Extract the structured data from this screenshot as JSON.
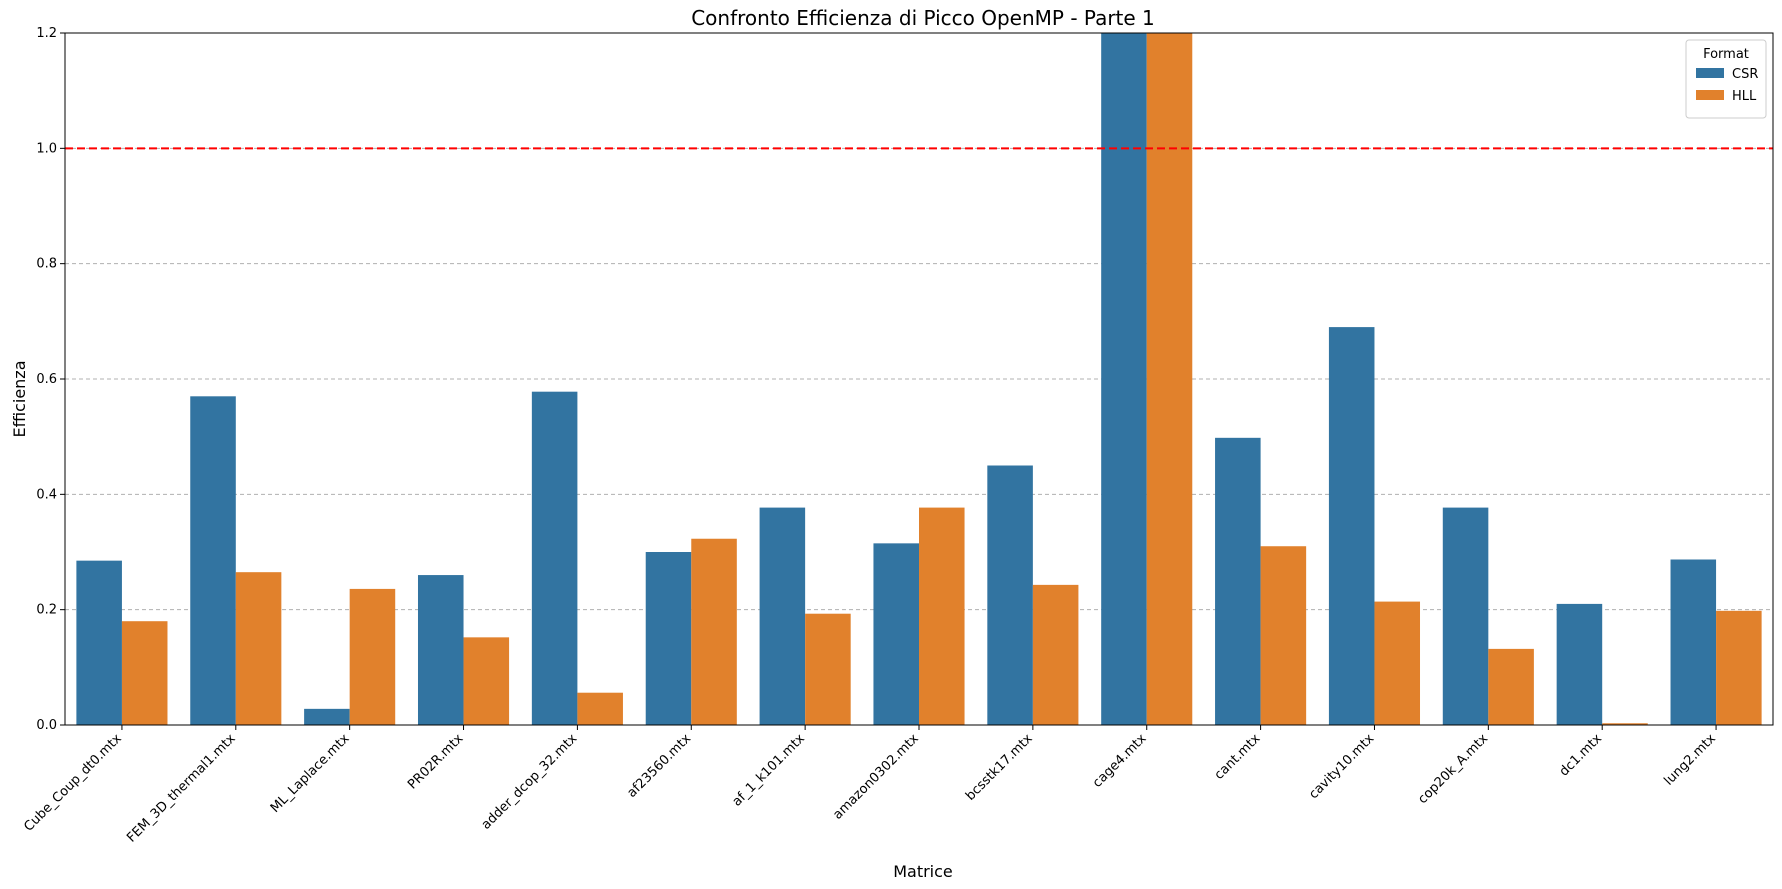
{
  "chart_data": {
    "type": "bar",
    "title": "Confronto Efficienza di Picco OpenMP - Parte 1",
    "xlabel": "Matrice",
    "ylabel": "Efficienza",
    "ylim": [
      0,
      1.2
    ],
    "yticks": [
      "0.0",
      "0.2",
      "0.4",
      "0.6",
      "0.8",
      "1.0",
      "1.2"
    ],
    "grid": "y-dashed",
    "reference_line": {
      "y": 1.0,
      "color": "#ff0000",
      "style": "dashed"
    },
    "categories": [
      "Cube_Coup_dt0.mtx",
      "FEM_3D_thermal1.mtx",
      "ML_Laplace.mtx",
      "PR02R.mtx",
      "adder_dcop_32.mtx",
      "af23560.mtx",
      "af_1_k101.mtx",
      "amazon0302.mtx",
      "bcsstk17.mtx",
      "cage4.mtx",
      "cant.mtx",
      "cavity10.mtx",
      "cop20k_A.mtx",
      "dc1.mtx",
      "lung2.mtx"
    ],
    "series": [
      {
        "name": "CSR",
        "color": "#3274a1",
        "values": [
          0.285,
          0.57,
          0.028,
          0.26,
          0.578,
          0.3,
          0.377,
          0.315,
          0.45,
          1.2,
          0.498,
          0.69,
          0.377,
          0.21,
          0.287
        ]
      },
      {
        "name": "HLL",
        "color": "#e1812c",
        "values": [
          0.18,
          0.265,
          0.236,
          0.152,
          0.056,
          0.323,
          0.193,
          0.377,
          0.243,
          1.2,
          0.31,
          0.214,
          0.132,
          0.003,
          0.198
        ]
      }
    ],
    "legend": {
      "title": "Format",
      "placement": "top-right"
    }
  }
}
